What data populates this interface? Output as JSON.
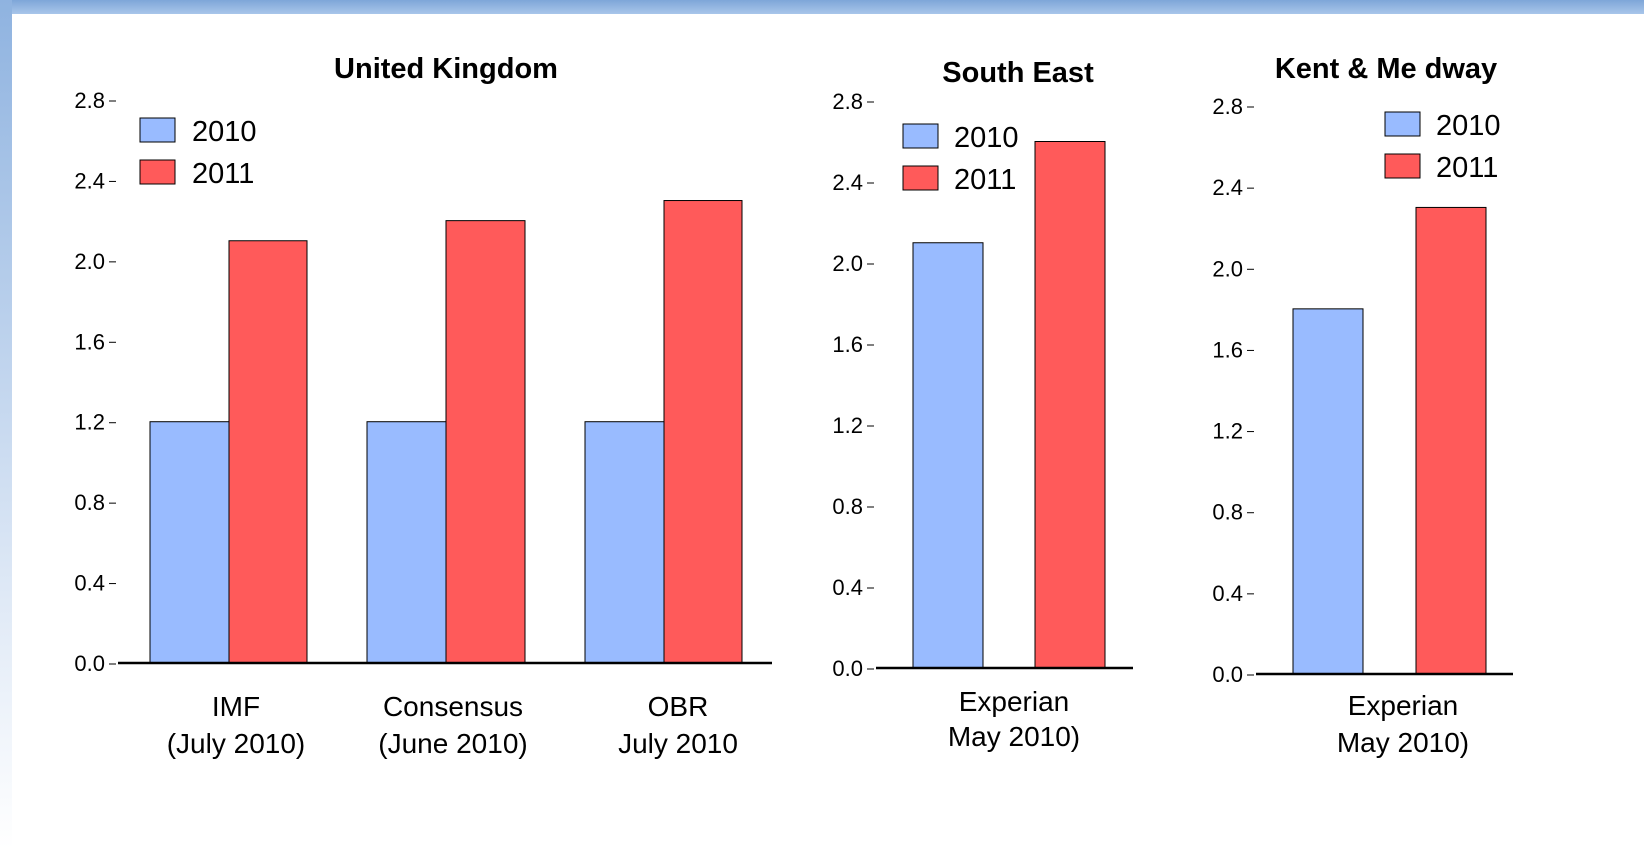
{
  "colors": {
    "y2010": "#99bbff",
    "y2011": "#ff5a5a",
    "frame_top": "#7ea6d8"
  },
  "chart_data": [
    {
      "type": "bar",
      "title": "United Kingdom",
      "ylim": [
        0,
        2.8
      ],
      "yticks": [
        "0.0",
        "0.4",
        "0.8",
        "1.2",
        "1.6",
        "2.0",
        "2.4",
        "2.8"
      ],
      "categories": [
        [
          "IMF",
          "(July 2010)"
        ],
        [
          "Consensus",
          "(June 2010)"
        ],
        [
          "OBR",
          "July 2010"
        ]
      ],
      "series": [
        {
          "name": "2010",
          "values": [
            1.2,
            1.2,
            1.2
          ]
        },
        {
          "name": "2011",
          "values": [
            2.1,
            2.2,
            2.3
          ]
        }
      ],
      "legend": "top-left"
    },
    {
      "type": "bar",
      "title": "South East",
      "ylim": [
        0,
        2.8
      ],
      "yticks": [
        "0.0",
        "0.4",
        "0.8",
        "1.2",
        "1.6",
        "2.0",
        "2.4",
        "2.8"
      ],
      "categories": [
        [
          "Experian",
          "May 2010)"
        ]
      ],
      "series": [
        {
          "name": "2010",
          "values": [
            2.1
          ]
        },
        {
          "name": "2011",
          "values": [
            2.6
          ]
        }
      ],
      "legend": "top-left"
    },
    {
      "type": "bar",
      "title": "Kent & Me dway",
      "ylim": [
        0,
        2.8
      ],
      "yticks": [
        "0.0",
        "0.4",
        "0.8",
        "1.2",
        "1.6",
        "2.0",
        "2.4",
        "2.8"
      ],
      "categories": [
        [
          "Experian",
          "May 2010)"
        ]
      ],
      "series": [
        {
          "name": "2010",
          "values": [
            1.8
          ]
        },
        {
          "name": "2011",
          "values": [
            2.3
          ]
        }
      ],
      "legend": "top-right"
    }
  ]
}
